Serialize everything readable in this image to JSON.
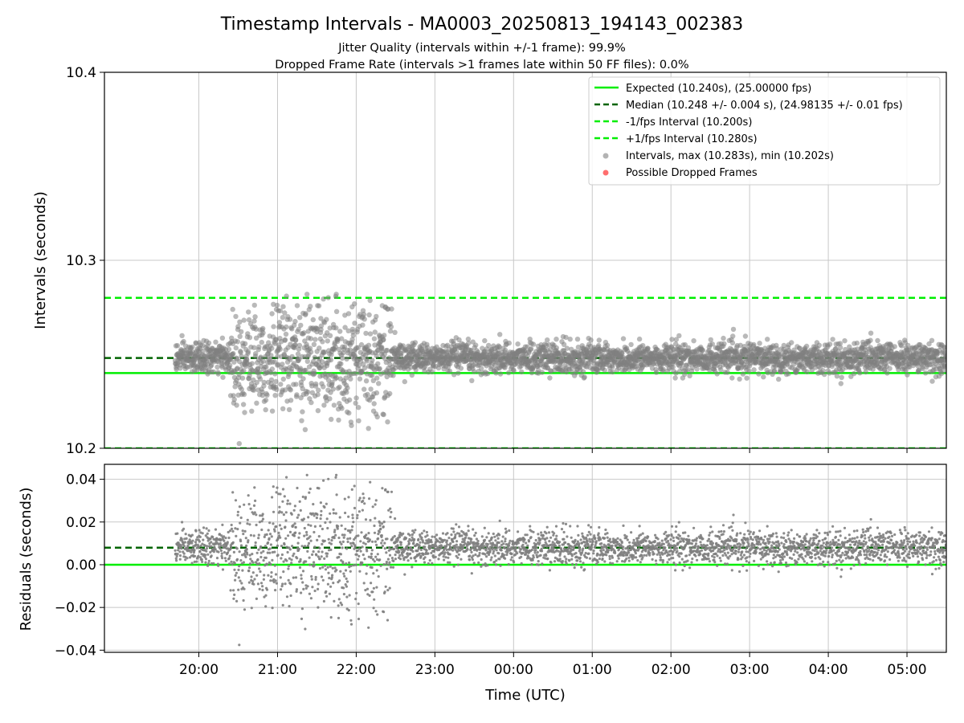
{
  "figure": {
    "title": "Timestamp Intervals - MA0003_20250813_194143_002383",
    "subtitle_line1": "Jitter Quality (intervals within +/-1 frame): 99.9%",
    "subtitle_line2": "Dropped Frame Rate (intervals >1 frames late within 50 FF files): 0.0%",
    "xlabel": "Time (UTC)"
  },
  "colors": {
    "expected": "#00ee00",
    "median": "#006400",
    "bounds": "#00ee00",
    "points": "#808080",
    "dropped": "#ff5555",
    "grid": "#c8c8c8"
  },
  "chart_data": [
    {
      "type": "scatter",
      "panel": "top",
      "ylabel": "Intervals (seconds)",
      "ylim": [
        10.2,
        10.4
      ],
      "yticks": [
        10.2,
        10.3,
        10.4
      ],
      "ytick_labels": [
        "10.2",
        "10.3",
        "10.4"
      ],
      "xlim_hours": [
        18.8,
        29.5
      ],
      "xticks_hours": [
        20,
        21,
        22,
        23,
        24,
        25,
        26,
        27,
        28,
        29
      ],
      "xtick_labels": [
        "20:00",
        "21:00",
        "22:00",
        "23:00",
        "00:00",
        "01:00",
        "02:00",
        "03:00",
        "04:00",
        "05:00"
      ],
      "grid": true,
      "legend_position": "upper right",
      "lines": [
        {
          "name": "Expected (10.240s), (25.00000 fps)",
          "y": 10.24,
          "style": "solid",
          "color": "#00ee00"
        },
        {
          "name": "Median (10.248 +/- 0.004 s), (24.98135 +/- 0.01 fps)",
          "y": 10.248,
          "style": "dashed",
          "color": "#006400"
        },
        {
          "name": "-1/fps Interval (10.200s)",
          "y": 10.2,
          "style": "dashed",
          "color": "#00ee00"
        },
        {
          "name": "+1/fps Interval (10.280s)",
          "y": 10.28,
          "style": "dashed",
          "color": "#00ee00"
        }
      ],
      "scatter_series": [
        {
          "name": "Intervals, max (10.283s), min (10.202s)",
          "color": "#808080"
        },
        {
          "name": "Possible Dropped Frames",
          "color": "#ff5555"
        }
      ],
      "series_summary": {
        "x_start_hours": 19.7,
        "x_end_hours": 29.5,
        "max": 10.283,
        "min": 10.202,
        "median": 10.248,
        "std": 0.004
      }
    },
    {
      "type": "scatter",
      "panel": "bottom",
      "ylabel": "Residuals (seconds)",
      "ylim": [
        -0.041,
        0.047
      ],
      "yticks": [
        -0.04,
        -0.02,
        0.0,
        0.02,
        0.04
      ],
      "ytick_labels": [
        "−0.04",
        "−0.02",
        "0.00",
        "0.02",
        "0.04"
      ],
      "xlim_hours": [
        18.8,
        29.5
      ],
      "xticks_hours": [
        20,
        21,
        22,
        23,
        24,
        25,
        26,
        27,
        28,
        29
      ],
      "xtick_labels": [
        "20:00",
        "21:00",
        "22:00",
        "23:00",
        "00:00",
        "01:00",
        "02:00",
        "03:00",
        "04:00",
        "05:00"
      ],
      "grid": true,
      "lines": [
        {
          "y": 0.0,
          "style": "solid",
          "color": "#00ee00"
        },
        {
          "y": 0.008,
          "style": "dashed",
          "color": "#006400"
        }
      ],
      "series_summary": {
        "x_start_hours": 19.7,
        "x_end_hours": 29.5,
        "max": 0.043,
        "min": -0.038
      }
    }
  ]
}
